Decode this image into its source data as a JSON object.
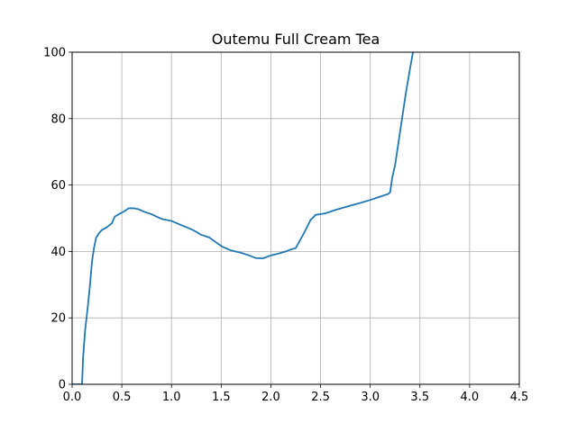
{
  "chart_data": {
    "type": "line",
    "title": "Outemu Full Cream Tea",
    "xlabel": "",
    "ylabel": "",
    "xlim": [
      0.0,
      4.5
    ],
    "ylim": [
      0,
      100
    ],
    "xticks": [
      "0.0",
      "0.5",
      "1.0",
      "1.5",
      "2.0",
      "2.5",
      "3.0",
      "3.5",
      "4.0",
      "4.5"
    ],
    "yticks": [
      "0",
      "20",
      "40",
      "60",
      "80",
      "100"
    ],
    "grid": true,
    "legend": "none",
    "series": [
      {
        "color": "#1f77b4",
        "points": [
          [
            0.0,
            0
          ],
          [
            0.1,
            0
          ],
          [
            0.11,
            8
          ],
          [
            0.13,
            16
          ],
          [
            0.16,
            24
          ],
          [
            0.18,
            30
          ],
          [
            0.2,
            37
          ],
          [
            0.22,
            41
          ],
          [
            0.24,
            44
          ],
          [
            0.27,
            45.5
          ],
          [
            0.3,
            46.5
          ],
          [
            0.35,
            47.3
          ],
          [
            0.4,
            48.5
          ],
          [
            0.43,
            50.5
          ],
          [
            0.47,
            51.2
          ],
          [
            0.52,
            52
          ],
          [
            0.57,
            53
          ],
          [
            0.62,
            53
          ],
          [
            0.67,
            52.7
          ],
          [
            0.72,
            52
          ],
          [
            0.8,
            51.2
          ],
          [
            0.85,
            50.5
          ],
          [
            0.9,
            49.8
          ],
          [
            1.0,
            49.2
          ],
          [
            1.07,
            48.3
          ],
          [
            1.15,
            47.3
          ],
          [
            1.22,
            46.4
          ],
          [
            1.3,
            45
          ],
          [
            1.38,
            44.2
          ],
          [
            1.45,
            42.7
          ],
          [
            1.52,
            41.3
          ],
          [
            1.6,
            40.3
          ],
          [
            1.7,
            39.6
          ],
          [
            1.78,
            38.8
          ],
          [
            1.85,
            38
          ],
          [
            1.92,
            37.9
          ],
          [
            2.0,
            38.8
          ],
          [
            2.08,
            39.4
          ],
          [
            2.15,
            40
          ],
          [
            2.2,
            40.6
          ],
          [
            2.25,
            41
          ],
          [
            2.3,
            43.7
          ],
          [
            2.35,
            46.5
          ],
          [
            2.4,
            49.5
          ],
          [
            2.45,
            51
          ],
          [
            2.55,
            51.5
          ],
          [
            2.65,
            52.5
          ],
          [
            2.8,
            53.8
          ],
          [
            2.9,
            54.6
          ],
          [
            3.0,
            55.5
          ],
          [
            3.1,
            56.5
          ],
          [
            3.18,
            57.3
          ],
          [
            3.2,
            57.8
          ],
          [
            3.22,
            62
          ],
          [
            3.25,
            66
          ],
          [
            3.28,
            72
          ],
          [
            3.32,
            80
          ],
          [
            3.36,
            88
          ],
          [
            3.4,
            95
          ],
          [
            3.43,
            100
          ]
        ]
      }
    ]
  }
}
